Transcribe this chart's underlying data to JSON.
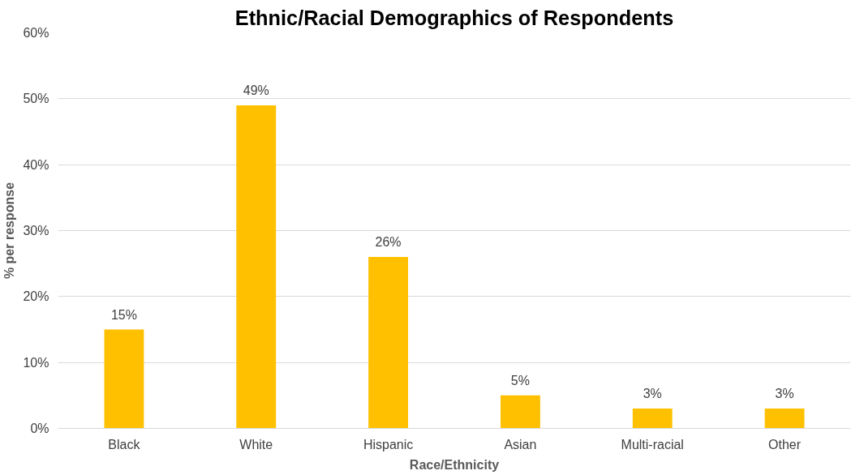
{
  "chart_data": {
    "type": "bar",
    "title": "Ethnic/Racial Demographics of Respondents",
    "xlabel": "Race/Ethnicity",
    "ylabel": "% per response",
    "categories": [
      "Black",
      "White",
      "Hispanic",
      "Asian",
      "Multi-racial",
      "Other"
    ],
    "values": [
      15,
      49,
      26,
      5,
      3,
      3
    ],
    "value_labels": [
      "15%",
      "49%",
      "26%",
      "5%",
      "3%",
      "3%"
    ],
    "color": "#ffc000",
    "ylim": [
      0,
      60
    ],
    "yticks": [
      {
        "value": 0,
        "label": "0%"
      },
      {
        "value": 10,
        "label": "10%"
      },
      {
        "value": 20,
        "label": "20%"
      },
      {
        "value": 30,
        "label": "30%"
      },
      {
        "value": 40,
        "label": "40%"
      },
      {
        "value": 50,
        "label": "50%"
      },
      {
        "value": 60,
        "label": "60%"
      }
    ],
    "grid": "y"
  }
}
